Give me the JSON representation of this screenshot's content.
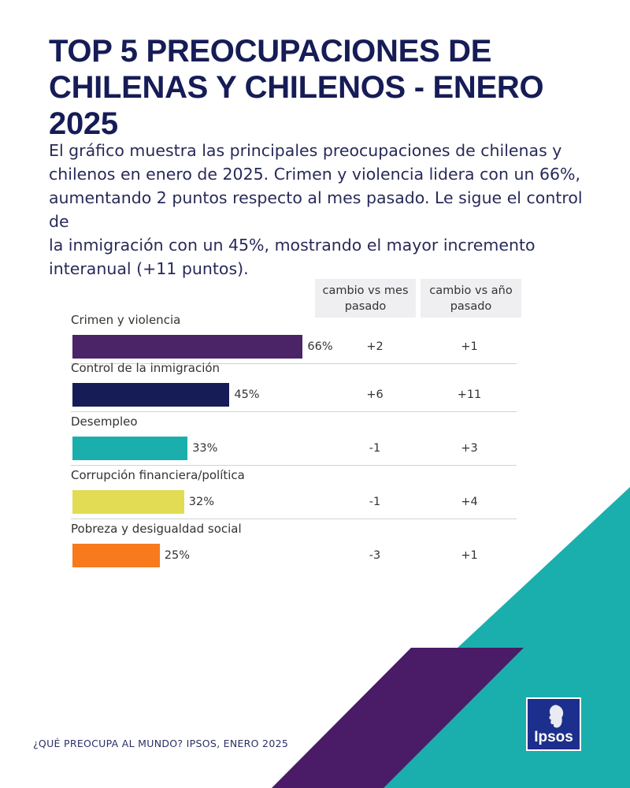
{
  "header": {
    "title_line1": "TOP 5 PREOCUPACIONES DE",
    "title_line2": "CHILENAS Y CHILENOS - ENERO 2025"
  },
  "description": [
    "El gráfico muestra las principales preocupaciones de chilenas y",
    "chilenos en enero de 2025. Crimen y violencia lidera con un 66%,",
    "aumentando 2 puntos respecto al mes pasado. Le sigue el control de",
    "la inmigración con un 45%, mostrando el mayor incremento",
    "interanual (+11 puntos)."
  ],
  "columns": {
    "month_line1": "cambio vs mes",
    "month_line2": "pasado",
    "year_line1": "cambio vs año",
    "year_line2": "pasado"
  },
  "chart_data": {
    "type": "bar",
    "orientation": "horizontal",
    "categories": [
      "Crimen y violencia",
      "Control de la inmigración",
      "Desempleo",
      "Corrupción financiera/política",
      "Pobreza y desigualdad social"
    ],
    "values": [
      66,
      45,
      33,
      32,
      25
    ],
    "value_labels": [
      "66%",
      "45%",
      "33%",
      "32%",
      "25%"
    ],
    "change_vs_last_month": [
      "+2",
      "+6",
      "-1",
      "-1",
      "-3"
    ],
    "change_vs_last_year": [
      "+1",
      "+11",
      "+3",
      "+4",
      "+1"
    ],
    "bar_colors": [
      "#4a2466",
      "#161c56",
      "#1aafad",
      "#e2dc54",
      "#f77a1c"
    ],
    "xlim": [
      0,
      100
    ],
    "title": "TOP 5 PREOCUPACIONES DE CHILENAS Y CHILENOS - ENERO 2025"
  },
  "footer": {
    "source": "¿QUÉ PREOCUPA AL MUNDO? IPSOS, ENERO 2025"
  },
  "logo": {
    "text": "Ipsos",
    "icon": "ipsos-face-icon"
  },
  "colors": {
    "teal": "#1aafad",
    "purple": "#4a1b66",
    "navy": "#161c56",
    "logo_blue": "#1d2f8c"
  }
}
